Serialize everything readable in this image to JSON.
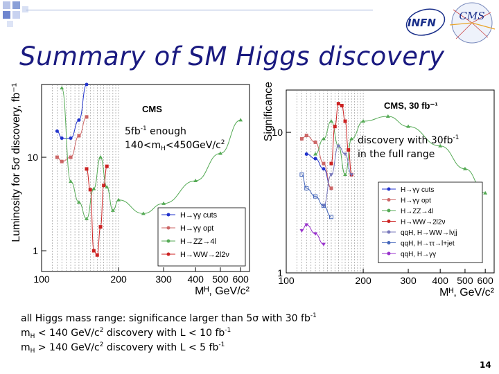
{
  "slide": {
    "title": "Summary of SM Higgs discovery",
    "page_number": "14",
    "logos": {
      "infn": "INFN",
      "cms": "CMS"
    },
    "note_left": {
      "l1a": "5fb",
      "l1b": "-1",
      "l1c": " enough",
      "l2a": "140<m",
      "l2b": "H",
      "l2c": "<450GeV/c",
      "l2d": "2"
    },
    "note_right": {
      "l1a": "discovery with 30fb",
      "l1b": "-1",
      "l2": "in the full range"
    },
    "summary": [
      {
        "a": "all Higgs mass range: significance larger than 5σ with 30 fb",
        "b": "-1"
      },
      {
        "a": "m",
        "b": "H",
        "c": " < 140 GeV/c",
        "d": "2",
        "e": " discovery with L < 10 fb",
        "f": "-1"
      },
      {
        "a": "m",
        "b": "H",
        "c": " > 140 GeV/c",
        "d": "2",
        "e": " discovery with L <  5 fb",
        "f": "-1"
      }
    ],
    "accent_color": "#1a1a80"
  },
  "chart_data": [
    {
      "type": "line",
      "title": "CMS",
      "xlabel": "M_H, GeV/c^2",
      "ylabel": "Luminosity for 5σ discovery, fb^-1",
      "x_scale": "log",
      "y_scale": "log",
      "xlim": [
        100,
        650
      ],
      "ylim": [
        0.6,
        60
      ],
      "x_ticks": [
        100,
        200,
        300,
        400,
        500,
        600
      ],
      "y_ticks": [
        1,
        10
      ],
      "legend_position": "bottom-right",
      "series": [
        {
          "name": "H→γγ cuts",
          "color": "#2233cc",
          "marker": "circle",
          "x": [
            115,
            120,
            130,
            140,
            150
          ],
          "y": [
            19,
            16,
            16,
            25,
            60
          ]
        },
        {
          "name": "H→γγ opt",
          "color": "#cc6666",
          "marker": "square",
          "x": [
            115,
            120,
            130,
            140,
            150
          ],
          "y": [
            10,
            9,
            10,
            17,
            27
          ]
        },
        {
          "name": "H→ZZ→4l",
          "color": "#55aa55",
          "marker": "triangle",
          "x": [
            120,
            130,
            140,
            150,
            160,
            170,
            180,
            190,
            200,
            250,
            300,
            400,
            500,
            600
          ],
          "y": [
            55,
            5.5,
            3.3,
            2.2,
            4.6,
            10,
            4.8,
            2.7,
            3.5,
            2.5,
            3.2,
            5.6,
            11,
            25
          ]
        },
        {
          "name": "H→WW→2l2ν",
          "color": "#cc2222",
          "marker": "square",
          "x": [
            150,
            155,
            160,
            165,
            170,
            175,
            180
          ],
          "y": [
            7.5,
            4.5,
            1.0,
            0.9,
            1.8,
            5.0,
            8.0
          ]
        }
      ]
    },
    {
      "type": "line",
      "title": "CMS, 30 fb^-1",
      "xlabel": "M_H, GeV/c^2",
      "ylabel": "Significance",
      "x_scale": "log",
      "y_scale": "log",
      "xlim": [
        100,
        650
      ],
      "ylim": [
        1,
        20
      ],
      "x_ticks": [
        100,
        200,
        300,
        400,
        500,
        600
      ],
      "y_ticks": [
        1,
        10
      ],
      "legend_position": "bottom-right",
      "series": [
        {
          "name": "H→γγ cuts",
          "color": "#2233cc",
          "marker": "circle",
          "x": [
            120,
            130,
            140,
            150
          ],
          "y": [
            7,
            6.5,
            5.5,
            4
          ]
        },
        {
          "name": "H→γγ opt",
          "color": "#cc6666",
          "marker": "square",
          "x": [
            115,
            120,
            130,
            140,
            150
          ],
          "y": [
            9,
            9.5,
            8.5,
            6,
            4
          ]
        },
        {
          "name": "H→ZZ→4l",
          "color": "#55aa55",
          "marker": "triangle",
          "x": [
            130,
            140,
            150,
            160,
            170,
            180,
            200,
            250,
            300,
            400,
            500,
            600
          ],
          "y": [
            7,
            9,
            12,
            8,
            5,
            9,
            12,
            13,
            11,
            8,
            5.5,
            3.7
          ]
        },
        {
          "name": "H→WW→2l2ν",
          "color": "#cc2222",
          "marker": "square",
          "x": [
            150,
            155,
            160,
            165,
            170,
            175,
            180
          ],
          "y": [
            6,
            11,
            16,
            15.5,
            12,
            7.5,
            5
          ]
        },
        {
          "name": "qqH, H→WW→lνjj",
          "color": "#7777bb",
          "marker": "triangle-down",
          "x": [
            140,
            150,
            160,
            170,
            180
          ],
          "y": [
            3,
            5,
            8,
            7,
            5
          ]
        },
        {
          "name": "qqH, H→ττ→l+jet",
          "color": "#4466bb",
          "marker": "open-square",
          "x": [
            115,
            120,
            130,
            140,
            150
          ],
          "y": [
            5,
            4,
            3.5,
            3,
            2.5
          ]
        },
        {
          "name": "qqH, H→γγ",
          "color": "#9933cc",
          "marker": "triangle-down",
          "x": [
            115,
            120,
            130,
            140
          ],
          "y": [
            2,
            2.2,
            1.9,
            1.6
          ]
        }
      ]
    }
  ]
}
